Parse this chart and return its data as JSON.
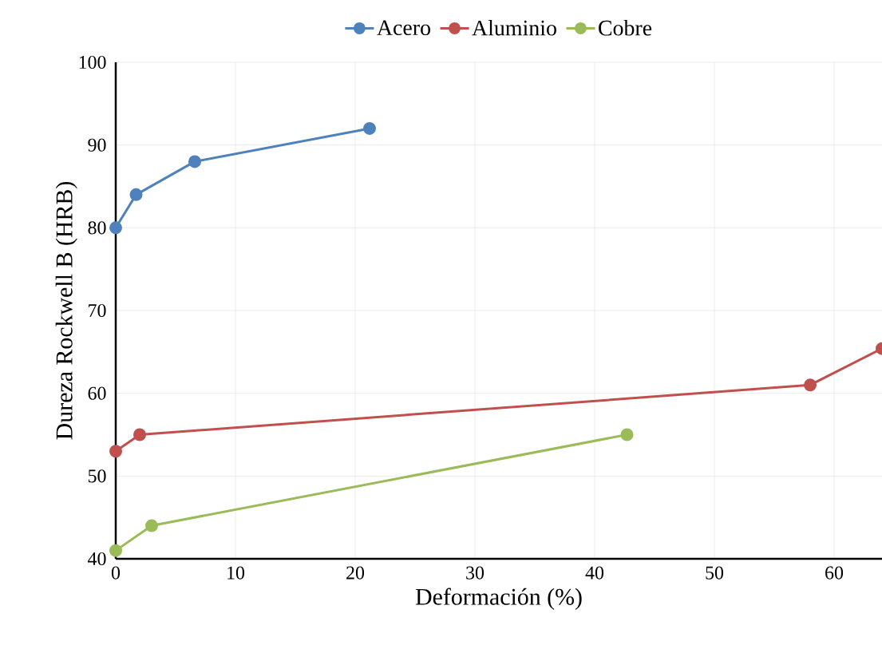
{
  "chart_data": {
    "type": "line",
    "xlabel": "Deformación (%)",
    "ylabel": "Dureza Rockwell B (HRB)",
    "xlim": [
      0,
      64
    ],
    "ylim": [
      40,
      100
    ],
    "xticks": [
      0,
      10,
      20,
      30,
      40,
      50,
      60
    ],
    "yticks": [
      40,
      50,
      60,
      70,
      80,
      90,
      100
    ],
    "grid": true,
    "legend": "top",
    "marker": "circle",
    "line_style": "solid",
    "series": [
      {
        "name": "Acero",
        "color": "#4f81bd",
        "x": [
          0,
          1.7,
          6.6,
          21.2
        ],
        "values": [
          80,
          84,
          88,
          92
        ]
      },
      {
        "name": "Aluminio",
        "color": "#c0504d",
        "x": [
          0,
          2,
          58,
          64
        ],
        "values": [
          53,
          55,
          61,
          65.4
        ]
      },
      {
        "name": "Cobre",
        "color": "#9bbb59",
        "x": [
          0,
          3,
          42.7
        ],
        "values": [
          41,
          44,
          55
        ]
      }
    ]
  }
}
